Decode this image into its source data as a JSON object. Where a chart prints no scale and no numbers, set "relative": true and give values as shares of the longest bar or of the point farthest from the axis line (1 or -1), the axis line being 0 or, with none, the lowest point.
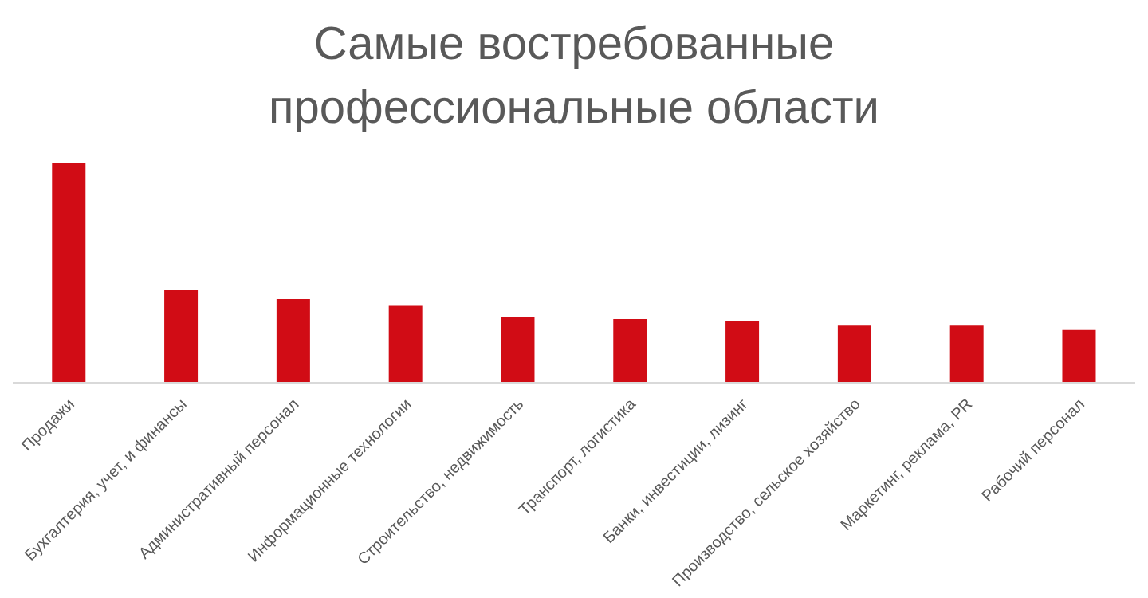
{
  "chart_data": {
    "type": "bar",
    "title": "Самые востребованные профессиональные области",
    "relative": true,
    "categories": [
      "Продажи",
      "Бухгалтерия, учет, и финансы",
      "Административный персонал",
      "Информационные технологии",
      "Строительство, недвижимость",
      "Транспорт, логистика",
      "Банки, инвестиции, лизинг",
      "Производство, сельское хозяйство",
      "Маркетинг, реклама, PR",
      "Рабочий персонал"
    ],
    "values": [
      1,
      0.42,
      0.38,
      0.35,
      0.3,
      0.29,
      0.28,
      0.26,
      0.26,
      0.24
    ],
    "color": "#d10c15",
    "grid": false,
    "legend": false
  }
}
